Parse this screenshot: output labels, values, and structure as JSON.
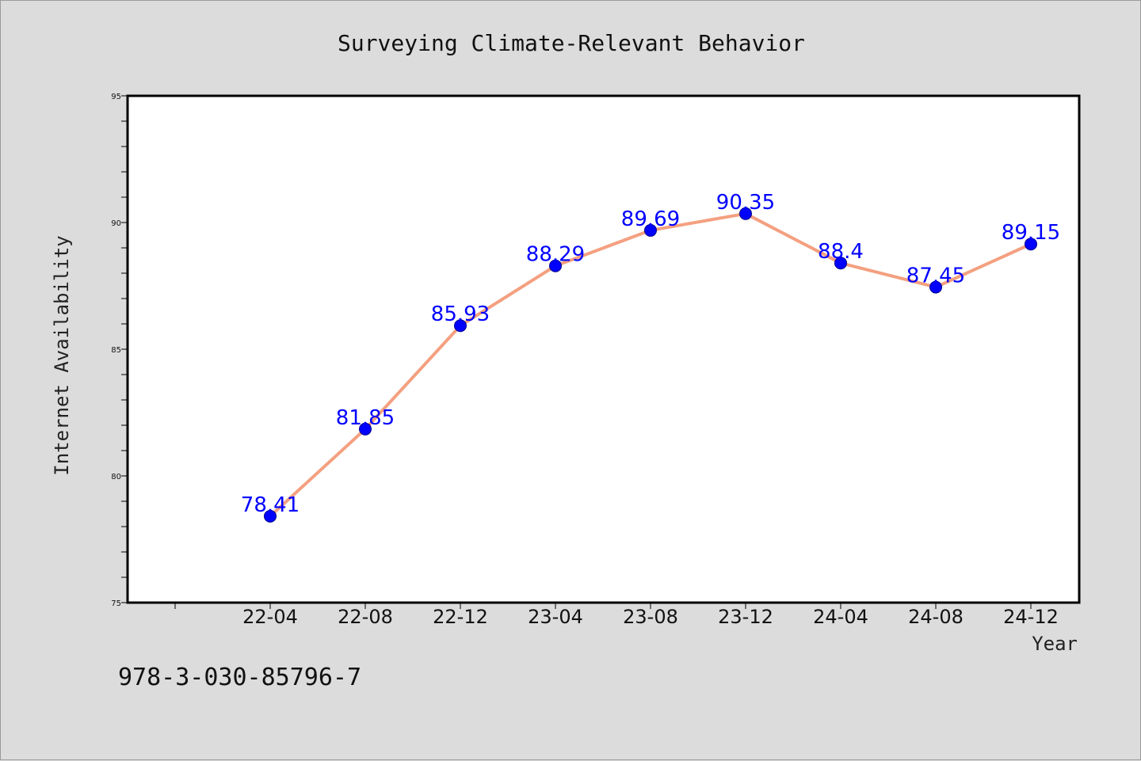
{
  "chart_data": {
    "type": "line",
    "title": "Surveying Climate-Relevant Behavior",
    "xlabel": "Year",
    "ylabel": "Internet Availability",
    "categories": [
      "22-04",
      "22-08",
      "22-12",
      "23-04",
      "23-08",
      "23-12",
      "24-04",
      "24-08",
      "24-12"
    ],
    "values": [
      78.41,
      81.85,
      85.93,
      88.29,
      89.69,
      90.35,
      88.4,
      87.45,
      89.15
    ],
    "data_labels": [
      "78.41",
      "81.85",
      "85.93",
      "88.29",
      "89.69",
      "90.35",
      "88.4",
      "87.45",
      "89.15"
    ],
    "ylim": [
      75,
      95
    ],
    "yticks": [
      "75",
      "80",
      "85",
      "90",
      "95"
    ],
    "grid": false,
    "line_color": "#f4a080",
    "marker_color": "#0000ff",
    "label_color": "#0000ff"
  },
  "footer": {
    "code": "978-3-030-85796-7"
  }
}
